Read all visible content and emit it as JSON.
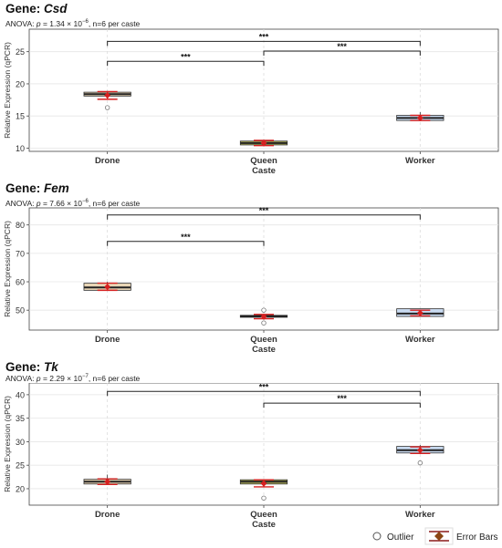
{
  "legend": {
    "outlier_label": "Outlier",
    "error_bars_label": "Error Bars"
  },
  "chart_data": [
    {
      "type": "box",
      "title_prefix": "Gene: ",
      "gene": "Csd",
      "subtitle_lead": "ANOVA: ",
      "subtitle_p": "p",
      "subtitle_mid": " = 1.34 × 10",
      "subtitle_exp": "−6",
      "subtitle_tail": ", n=6 per caste",
      "xlabel": "Caste",
      "ylabel": "Relative Expression (qPCR)",
      "ylim": [
        9.5,
        28.5
      ],
      "yticks": [
        10,
        15,
        20,
        25
      ],
      "categories": [
        "Drone",
        "Queen",
        "Worker"
      ],
      "box_colors": [
        "#E8D5B5",
        "#B5B55A",
        "#C8DAF0"
      ],
      "boxes": [
        {
          "q1": 18.1,
          "median": 18.4,
          "q3": 18.7,
          "mean": 18.2,
          "sd_low": 17.6,
          "sd_high": 18.8,
          "whisker_low": 17.8,
          "whisker_high": 18.9,
          "outliers": [
            16.3
          ]
        },
        {
          "q1": 10.5,
          "median": 10.8,
          "q3": 11.1,
          "mean": 10.8,
          "sd_low": 10.4,
          "sd_high": 11.2,
          "whisker_low": 10.3,
          "whisker_high": 11.3,
          "outliers": []
        },
        {
          "q1": 14.3,
          "median": 14.7,
          "q3": 15.1,
          "mean": 14.7,
          "sd_low": 14.3,
          "sd_high": 15.1,
          "whisker_low": 14.2,
          "whisker_high": 15.6,
          "outliers": []
        }
      ],
      "significance": [
        {
          "from": 0,
          "to": 1,
          "y": 23.5,
          "label": "***"
        },
        {
          "from": 1,
          "to": 2,
          "y": 25.1,
          "label": "***"
        },
        {
          "from": 0,
          "to": 2,
          "y": 26.6,
          "label": "***"
        }
      ]
    },
    {
      "type": "box",
      "title_prefix": "Gene: ",
      "gene": "Fem",
      "subtitle_lead": "ANOVA: ",
      "subtitle_p": "p",
      "subtitle_mid": " = 7.66 × 10",
      "subtitle_exp": "−6",
      "subtitle_tail": ", n=6 per caste",
      "xlabel": "Caste",
      "ylabel": "Relative Expression (qPCR)",
      "ylim": [
        43,
        86
      ],
      "yticks": [
        50,
        60,
        70,
        80
      ],
      "categories": [
        "Drone",
        "Queen",
        "Worker"
      ],
      "box_colors": [
        "#E8D5B5",
        "#B5B55A",
        "#C8DAF0"
      ],
      "boxes": [
        {
          "q1": 57,
          "median": 58,
          "q3": 59.5,
          "mean": 58.2,
          "sd_low": 57,
          "sd_high": 59.5,
          "whisker_low": 56.8,
          "whisker_high": 60,
          "outliers": []
        },
        {
          "q1": 47.5,
          "median": 47.8,
          "q3": 48.2,
          "mean": 47.7,
          "sd_low": 47,
          "sd_high": 48.5,
          "whisker_low": 47.2,
          "whisker_high": 48.5,
          "outliers": [
            45.5,
            50
          ]
        },
        {
          "q1": 47.8,
          "median": 48.8,
          "q3": 50.5,
          "mean": 49,
          "sd_low": 48,
          "sd_high": 50,
          "whisker_low": 47.8,
          "whisker_high": 50.5,
          "outliers": []
        }
      ],
      "significance": [
        {
          "from": 0,
          "to": 1,
          "y": 74.2,
          "label": "***"
        },
        {
          "from": 0,
          "to": 2,
          "y": 83.5,
          "label": "***"
        }
      ]
    },
    {
      "type": "box",
      "title_prefix": "Gene: ",
      "gene": "Tk",
      "subtitle_lead": "ANOVA: ",
      "subtitle_p": "p",
      "subtitle_mid": " = 2.29 × 10",
      "subtitle_exp": "−7",
      "subtitle_tail": ", n=6 per caste",
      "xlabel": "Caste",
      "ylabel": "Relative Expression (qPCR)",
      "ylim": [
        16.5,
        42.5
      ],
      "yticks": [
        20,
        25,
        30,
        35,
        40
      ],
      "categories": [
        "Drone",
        "Queen",
        "Worker"
      ],
      "box_colors": [
        "#E8D5B5",
        "#B5B55A",
        "#C8DAF0"
      ],
      "boxes": [
        {
          "q1": 21,
          "median": 21.5,
          "q3": 22,
          "mean": 21.5,
          "sd_low": 20.9,
          "sd_high": 22.1,
          "whisker_low": 20.9,
          "whisker_high": 23,
          "outliers": []
        },
        {
          "q1": 21,
          "median": 21.5,
          "q3": 21.9,
          "mean": 21.1,
          "sd_low": 20.4,
          "sd_high": 21.9,
          "whisker_low": 20.6,
          "whisker_high": 22,
          "outliers": [
            18
          ]
        },
        {
          "q1": 27.6,
          "median": 28.2,
          "q3": 29,
          "mean": 28.2,
          "sd_low": 27.5,
          "sd_high": 28.9,
          "whisker_low": 27.4,
          "whisker_high": 29.3,
          "outliers": [
            25.5
          ]
        }
      ],
      "significance": [
        {
          "from": 1,
          "to": 2,
          "y": 38.2,
          "label": "***"
        },
        {
          "from": 0,
          "to": 2,
          "y": 40.7,
          "label": "***"
        }
      ]
    }
  ]
}
